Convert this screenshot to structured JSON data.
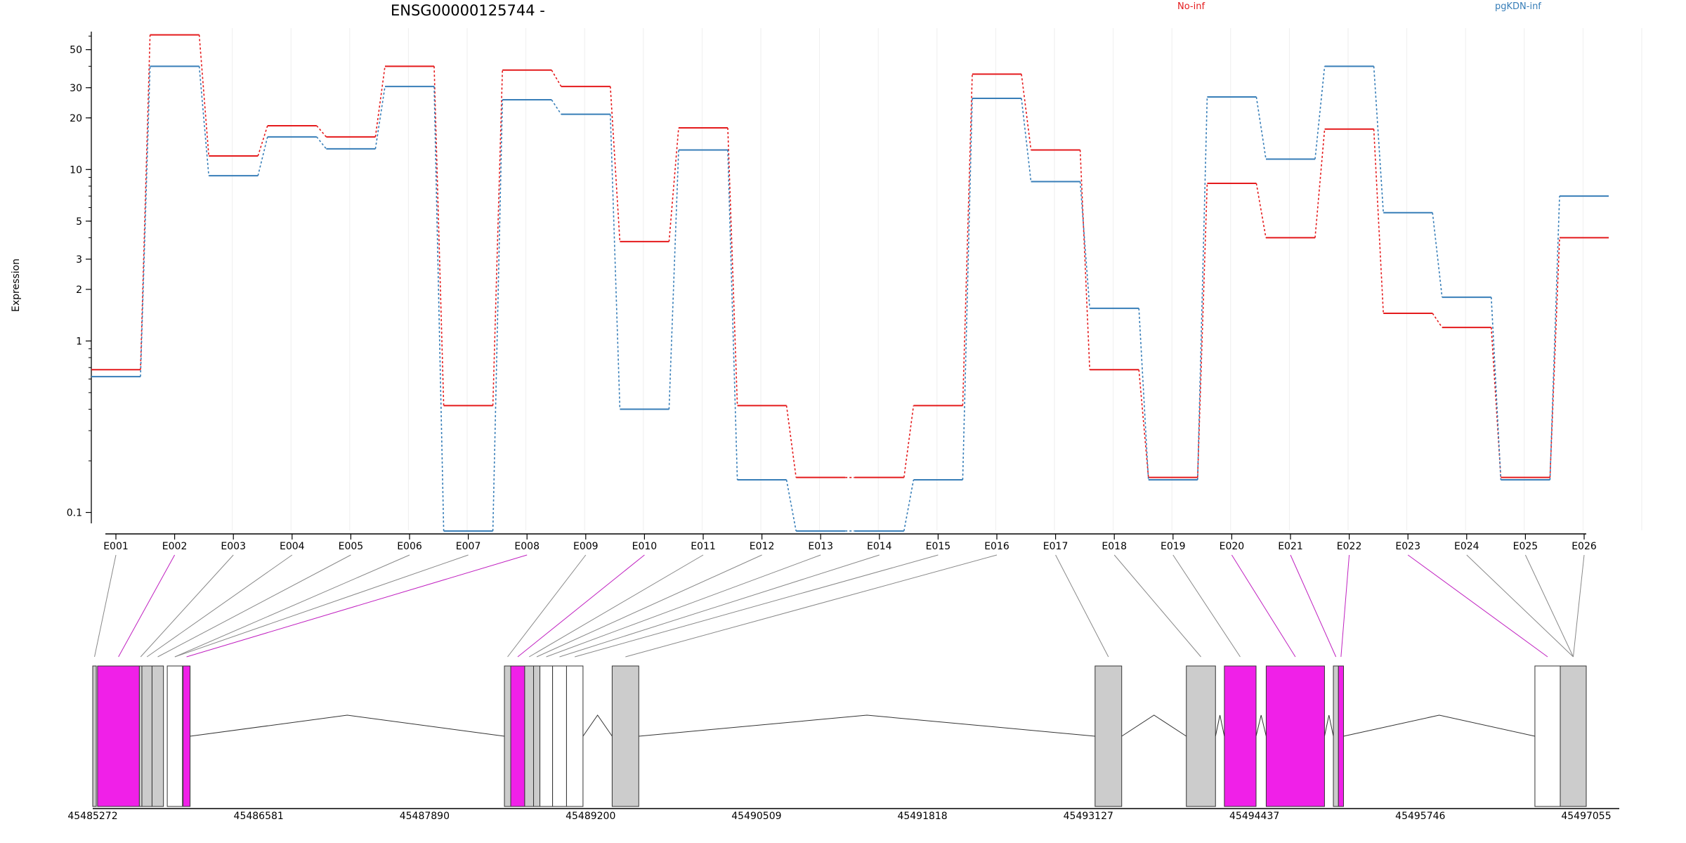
{
  "chart_data": {
    "type": "line",
    "title": "ENSG00000125744 -",
    "ylabel": "Expression",
    "yscale": "log",
    "ylim": [
      0.075,
      70
    ],
    "yticks": [
      0.1,
      1,
      2,
      3,
      5,
      10,
      20,
      30,
      50
    ],
    "yticklabels": [
      "0.1",
      "1",
      "2",
      "3",
      "5",
      "10",
      "20",
      "30",
      "50"
    ],
    "categories": [
      "E001",
      "E002",
      "E003",
      "E004",
      "E005",
      "E006",
      "E007",
      "E008",
      "E009",
      "E010",
      "E011",
      "E012",
      "E013",
      "E014",
      "E015",
      "E016",
      "E017",
      "E018",
      "E019",
      "E020",
      "E021",
      "E022",
      "E023",
      "E024",
      "E025",
      "E026"
    ],
    "series": [
      {
        "name": "No-inf",
        "color": "#e41a1c",
        "values": [
          0.68,
          61,
          12,
          18,
          15.5,
          40,
          0.42,
          38,
          30.5,
          3.8,
          17.5,
          0.42,
          0.16,
          0.16,
          0.42,
          36,
          13,
          0.68,
          0.16,
          8.3,
          4,
          17.2,
          1.45,
          1.2,
          0.16,
          4
        ]
      },
      {
        "name": "pgKDN-inf",
        "color": "#377eb8",
        "values": [
          0.62,
          40,
          9.2,
          15.5,
          13.2,
          30.5,
          0.078,
          25.5,
          21,
          0.4,
          13,
          0.155,
          0.078,
          0.078,
          0.155,
          26,
          8.5,
          1.55,
          0.155,
          26.5,
          11.5,
          40,
          5.6,
          1.8,
          0.155,
          7
        ]
      }
    ],
    "special_exons": [
      "E002",
      "E008",
      "E010",
      "E020",
      "E021",
      "E022",
      "E023"
    ],
    "coordinate_ticks": [
      "45485272",
      "45486581",
      "45487890",
      "45489200",
      "45490509",
      "45491818",
      "45493127",
      "45494437",
      "45495746",
      "45497055"
    ],
    "colors": {
      "exon_special": "#f020e8",
      "exon_plain": "#cccccc",
      "connector_special": "#c020c0",
      "connector_plain": "#888888"
    }
  }
}
